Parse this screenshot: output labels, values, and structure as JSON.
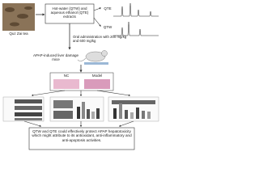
{
  "tea_label": "Quz Zai tea",
  "extract_box": "Hot-water (QTW) and aqueous ethanol (QTE) extracts",
  "chromatograms": [
    "QTE",
    "QTW"
  ],
  "administration": "Oral administration with 200 mg/kg and 600 mg/kg",
  "model_label": "APAP-induced liver damage mice",
  "histology": [
    "NC",
    "Model"
  ],
  "conclusion": "QTW and QTE could effectively protect APAP hepatotoxicity which might attribute to its antioxidant, anti-inflammatory and anti-apoptosis activities."
}
